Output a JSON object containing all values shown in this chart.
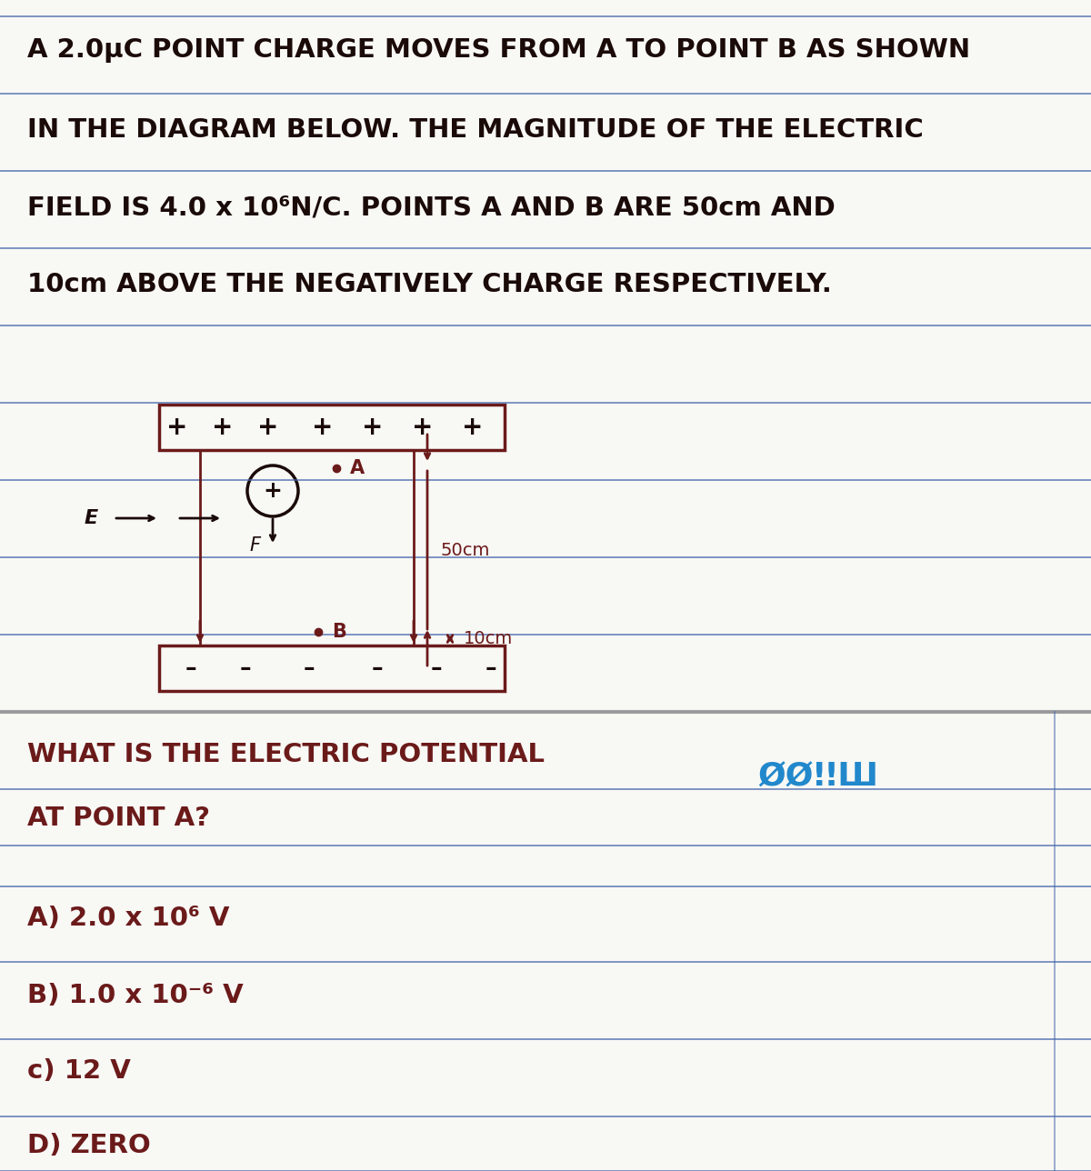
{
  "bg_color": "#f8f8f5",
  "line_color": "#4466aa",
  "text_color_dark": "#1a0a08",
  "text_color_red": "#6b1a1a",
  "text_color_blue": "#2288cc",
  "title_lines": [
    "A 2.0μC POINT CHARGE MOVES FROM A TO POINT B AS SHOWN",
    "IN THE DIAGRAM BELOW. THE MAGNITUDE OF THE ELECTRIC",
    "FIELD IS 4.0 x 10⁶N/C. POINTS A AND B ARE 50cm AND",
    "10cm ABOVE THE NEGATIVELY CHARGE RESPECTIVELY."
  ],
  "question_line1": "WHAT IS THE ELECTRIC POTENTIAL",
  "question_line2": "AT POINT A?",
  "answer_A": "A) 2.0 x 10⁶ V",
  "answer_B": "B) 1.0 x 10⁻⁶ V",
  "answer_C": "c) 12 V",
  "answer_D": "D) ZERO",
  "watermark": "ØØǃǃШ"
}
